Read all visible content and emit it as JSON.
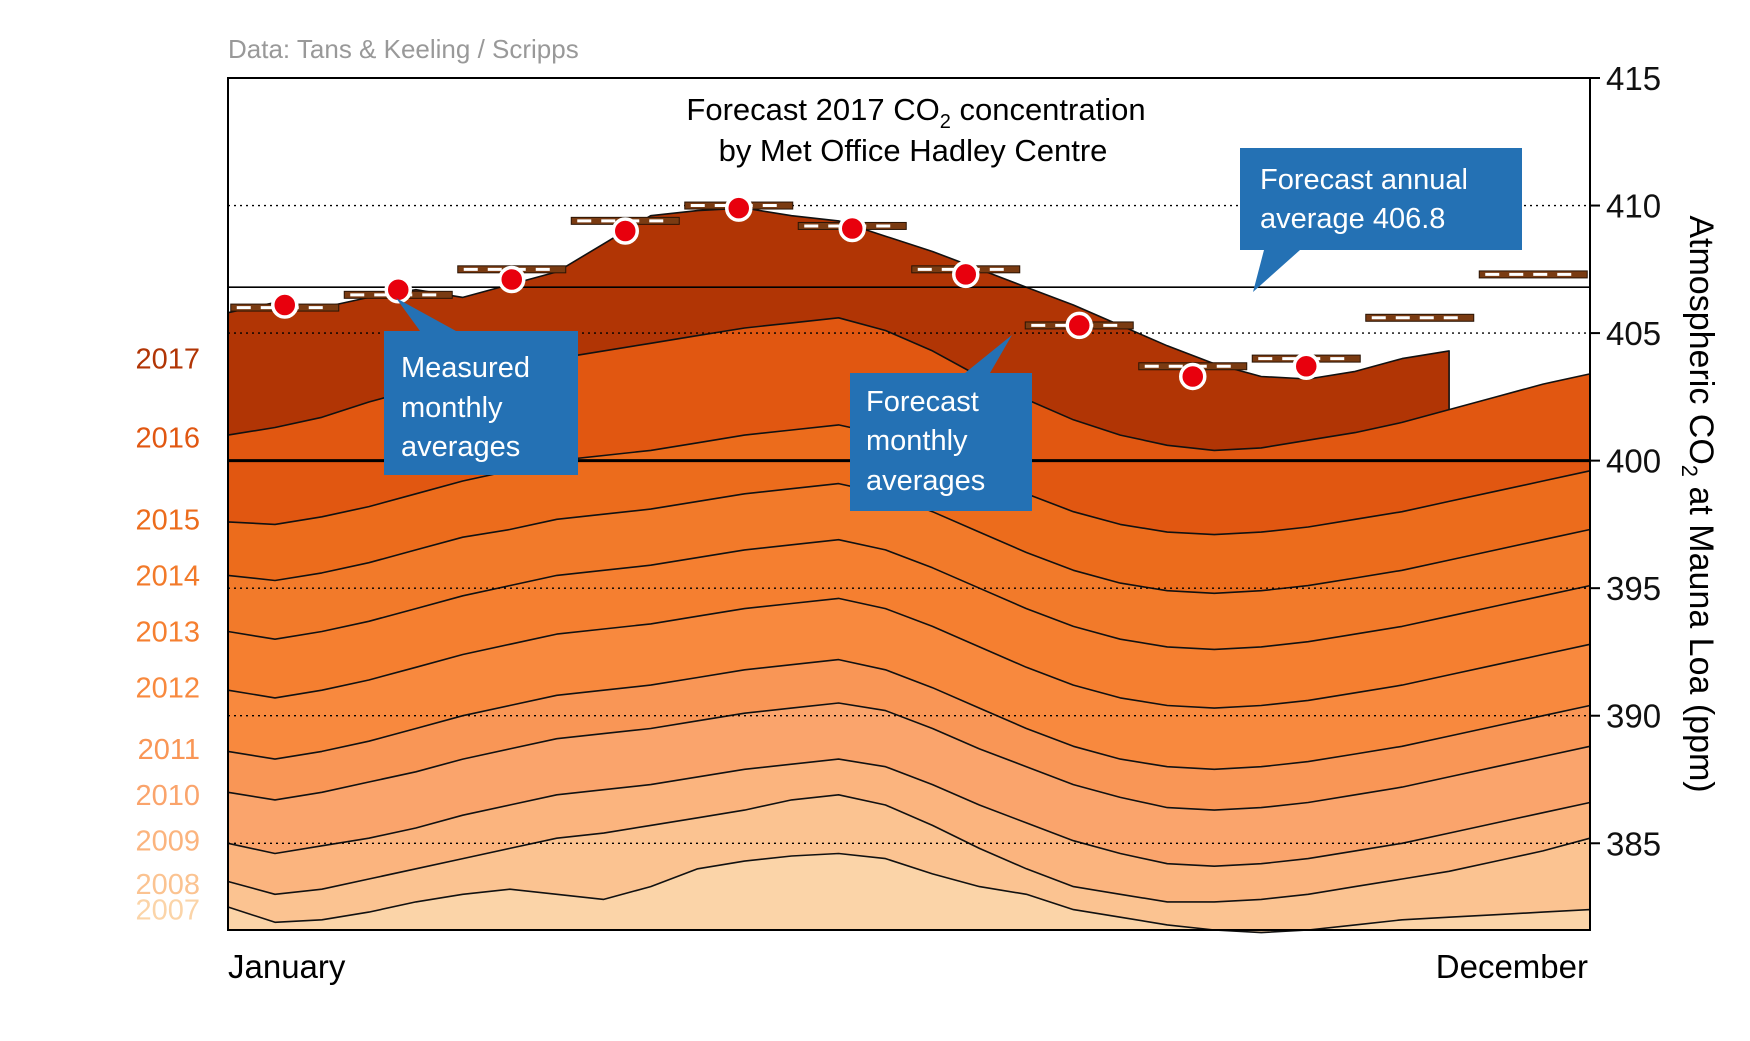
{
  "source": "Data: Tans & Keeling / Scripps",
  "title": {
    "line1_prefix": "Forecast 2017 CO",
    "line1_sub": "2",
    "line1_suffix": " concentration",
    "line2": "by Met Office Hadley Centre"
  },
  "y_axis": {
    "label_prefix": "Atmospheric CO",
    "label_sub": "2",
    "label_suffix": " at Mauna Loa (ppm)",
    "ticks": [
      "415",
      "410",
      "405",
      "400",
      "395",
      "390",
      "385"
    ]
  },
  "x_axis": {
    "start_label": "January",
    "end_label": "December"
  },
  "callouts": {
    "annual": [
      "Forecast annual",
      "average 406.8"
    ],
    "measured": [
      "Measured",
      "monthly",
      "averages"
    ],
    "forecast": [
      "Forecast",
      "monthly",
      "averages"
    ]
  },
  "colors": {
    "2007": "#fbd4a8",
    "2008": "#fbc391",
    "2009": "#fbb47e",
    "2010": "#faa46c",
    "2011": "#f99656",
    "2012": "#f8893e",
    "2013": "#f57f30",
    "2014": "#f27a2a",
    "2015": "#ec6c1c",
    "2016": "#e15711",
    "2017": "#b13505",
    "callout": "#2471b4",
    "dot": "#e8000d"
  },
  "chart_data": {
    "type": "area",
    "x_range": [
      "January",
      "December"
    ],
    "ylim": [
      381.6,
      415
    ],
    "grid": "dotted at 385, 390, 395, 410; solid at 400 and 406.8",
    "annual_forecast_average": 406.8,
    "series": [
      {
        "name": "2007",
        "label_value": 382.4,
        "weekly_top": [
          382.5,
          381.9,
          382.0,
          382.3,
          382.7,
          383.0,
          383.2,
          383.0,
          382.8,
          383.3,
          384.0,
          384.3,
          384.5,
          384.6,
          384.4,
          383.8,
          383.3,
          383.0,
          382.4,
          382.1,
          381.8,
          381.6,
          381.5,
          381.6,
          381.8,
          382.0,
          382.1,
          382.2,
          382.3,
          382.4
        ]
      },
      {
        "name": "2008",
        "label_value": 383.4,
        "weekly_top": [
          383.5,
          383.0,
          383.2,
          383.6,
          384.0,
          384.4,
          384.8,
          385.2,
          385.4,
          385.7,
          386.0,
          386.3,
          386.7,
          386.9,
          386.5,
          385.7,
          384.8,
          384.0,
          383.3,
          383.0,
          382.7,
          382.7,
          382.8,
          383.0,
          383.3,
          383.6,
          383.9,
          384.3,
          384.7,
          385.2
        ]
      },
      {
        "name": "2009",
        "label_value": 385.1,
        "weekly_top": [
          385.0,
          384.6,
          384.9,
          385.2,
          385.6,
          386.1,
          386.5,
          386.9,
          387.1,
          387.3,
          387.6,
          387.9,
          388.1,
          388.3,
          388.0,
          387.3,
          386.5,
          385.8,
          385.1,
          384.6,
          384.2,
          384.1,
          384.2,
          384.4,
          384.7,
          385.0,
          385.4,
          385.8,
          386.2,
          386.6
        ]
      },
      {
        "name": "2010",
        "label_value": 386.9,
        "weekly_top": [
          387.0,
          386.7,
          387.0,
          387.4,
          387.8,
          388.3,
          388.7,
          389.1,
          389.3,
          389.5,
          389.8,
          390.1,
          390.3,
          390.5,
          390.2,
          389.5,
          388.7,
          388.0,
          387.3,
          386.8,
          386.4,
          386.3,
          386.4,
          386.6,
          386.9,
          387.2,
          387.6,
          388.0,
          388.4,
          388.8
        ]
      },
      {
        "name": "2011",
        "label_value": 388.7,
        "weekly_top": [
          388.6,
          388.3,
          388.6,
          389.0,
          389.5,
          390.0,
          390.4,
          390.8,
          391.0,
          391.2,
          391.5,
          391.8,
          392.0,
          392.2,
          391.8,
          391.1,
          390.3,
          389.5,
          388.8,
          388.3,
          388.0,
          387.9,
          388.0,
          388.2,
          388.5,
          388.8,
          389.2,
          389.6,
          390.0,
          390.4
        ]
      },
      {
        "name": "2012",
        "label_value": 391.1,
        "weekly_top": [
          391.0,
          390.7,
          391.0,
          391.4,
          391.9,
          392.4,
          392.8,
          393.2,
          393.4,
          393.6,
          393.9,
          394.2,
          394.4,
          394.6,
          394.2,
          393.5,
          392.7,
          391.9,
          391.2,
          390.7,
          390.4,
          390.3,
          390.4,
          390.6,
          390.9,
          391.2,
          391.6,
          392.0,
          392.4,
          392.8
        ]
      },
      {
        "name": "2013",
        "label_value": 393.3,
        "weekly_top": [
          393.3,
          393.0,
          393.3,
          393.7,
          394.2,
          394.7,
          395.1,
          395.5,
          395.7,
          395.9,
          396.2,
          396.5,
          396.7,
          396.9,
          396.5,
          395.8,
          395.0,
          394.2,
          393.5,
          393.0,
          392.7,
          392.6,
          392.7,
          392.9,
          393.2,
          393.5,
          393.9,
          394.3,
          394.7,
          395.1
        ]
      },
      {
        "name": "2014",
        "label_value": 395.5,
        "weekly_top": [
          395.5,
          395.3,
          395.6,
          396.0,
          396.5,
          397.0,
          397.3,
          397.7,
          397.9,
          398.1,
          398.4,
          398.7,
          398.9,
          399.1,
          398.7,
          398.0,
          397.2,
          396.4,
          395.7,
          395.2,
          394.9,
          394.8,
          394.9,
          395.1,
          395.4,
          395.7,
          396.1,
          396.5,
          396.9,
          397.3
        ]
      },
      {
        "name": "2015",
        "label_value": 397.7,
        "weekly_top": [
          397.6,
          397.5,
          397.8,
          398.2,
          398.7,
          399.2,
          399.6,
          400.0,
          400.2,
          400.4,
          400.7,
          401.0,
          401.2,
          401.4,
          401.0,
          400.3,
          399.5,
          398.7,
          398.0,
          397.5,
          397.2,
          397.1,
          397.2,
          397.4,
          397.7,
          398.0,
          398.4,
          398.8,
          399.2,
          399.6
        ]
      },
      {
        "name": "2016",
        "label_value": 400.9,
        "weekly_top": [
          401.0,
          401.3,
          401.7,
          402.3,
          402.8,
          403.3,
          403.6,
          404.0,
          404.3,
          404.6,
          404.9,
          405.2,
          405.4,
          405.6,
          405.1,
          404.3,
          403.3,
          402.4,
          401.6,
          401.0,
          400.6,
          400.4,
          400.5,
          400.8,
          401.1,
          401.5,
          402.0,
          402.5,
          403.0,
          403.4
        ]
      },
      {
        "name": "2017",
        "label_value": 404.0,
        "weekly_top": [
          405.8,
          406.2,
          406.0,
          406.4,
          406.7,
          406.4,
          406.9,
          407.4,
          408.5,
          409.6,
          409.8,
          409.9,
          409.6,
          409.4,
          408.8,
          408.2,
          407.5,
          406.8,
          406.1,
          405.3,
          404.5,
          403.8,
          403.3,
          403.2,
          403.5,
          404.0,
          404.3
        ]
      },
      {
        "name": "Measured monthly averages",
        "values": [
          406.1,
          406.7,
          407.1,
          409.0,
          409.9,
          409.1,
          407.3,
          405.3,
          403.3,
          403.7
        ]
      },
      {
        "name": "Forecast monthly averages",
        "values": [
          406.0,
          406.5,
          407.5,
          409.4,
          410.0,
          409.2,
          407.5,
          405.3,
          403.7,
          404.0,
          405.6,
          407.3
        ]
      }
    ]
  }
}
